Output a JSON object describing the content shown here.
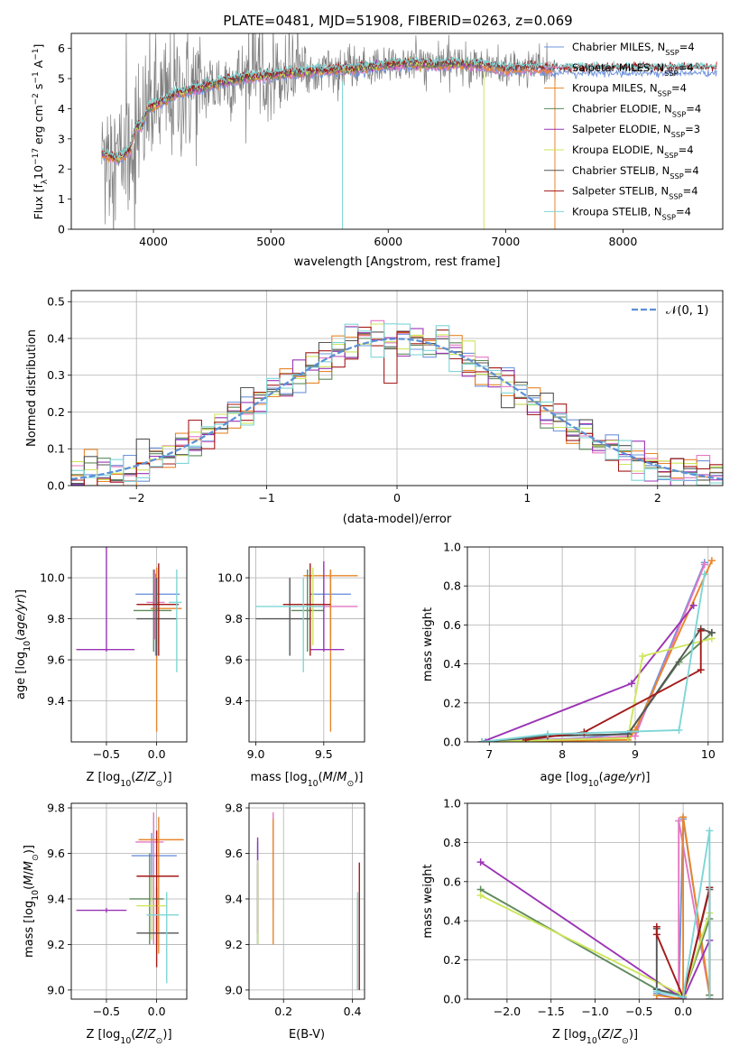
{
  "figure": {
    "title": "PLATE=0481, MJD=51908, FIBERID=0263, z=0.069"
  },
  "colors": {
    "chabrier_miles": "#6f94dc",
    "salpeter_miles": "#e377c2",
    "kroupa_miles": "#e8862a",
    "chabrier_elodie": "#5f8a5c",
    "salpeter_elodie": "#9b34b5",
    "kroupa_elodie": "#cde65a",
    "chabrier_stelib": "#555555",
    "salpeter_stelib": "#a31a1a",
    "kroupa_stelib": "#7fd6d6",
    "observed": "#808080",
    "normal_curve": "#5b8fd6",
    "grid": "#b0b0b0"
  },
  "chart_data": [
    {
      "id": "spectrum",
      "type": "line",
      "title": "PLATE=0481, MJD=51908, FIBERID=0263, z=0.069",
      "xlabel": "wavelength [Angstrom, rest frame]",
      "ylabel": "Flux [f_λ10^-17 erg cm^-2 s^-1 A^-1]",
      "xlim": [
        3300,
        8850
      ],
      "ylim": [
        0,
        6.5
      ],
      "xticks": [
        4000,
        5000,
        6000,
        7000,
        8000
      ],
      "yticks": [
        0,
        1,
        2,
        3,
        4,
        5,
        6
      ],
      "grid": false,
      "legend_position": "top-right",
      "observed_range": [
        3560,
        7430
      ],
      "model_knots": {
        "x": [
          3560,
          3700,
          3800,
          3850,
          3900,
          3950,
          4000,
          4100,
          4200,
          4400,
          4600,
          4800,
          5000,
          5200,
          5400,
          5600,
          5800,
          6000,
          6200,
          6400,
          6600,
          6800,
          7000,
          7200,
          7400
        ],
        "y": [
          2.5,
          2.35,
          2.6,
          3.4,
          3.4,
          4.0,
          4.1,
          4.3,
          4.5,
          4.7,
          4.9,
          5.05,
          5.1,
          5.2,
          5.25,
          5.3,
          5.35,
          5.45,
          5.5,
          5.45,
          5.5,
          5.45,
          5.3,
          5.35,
          5.3
        ]
      },
      "series": [
        {
          "name": "Chabrier MILES, N_SSP=4",
          "color": "#6f94dc",
          "end": 8800
        },
        {
          "name": "Salpeter MILES, N_SSP=4",
          "color": "#e377c2",
          "end": 7400
        },
        {
          "name": "Kroupa MILES, N_SSP=4",
          "color": "#e8862a",
          "end": 7400
        },
        {
          "name": "Chabrier ELODIE, N_SSP=4",
          "color": "#5f8a5c",
          "end": 6800
        },
        {
          "name": "Salpeter ELODIE, N_SSP=3",
          "color": "#9b34b5",
          "end": 6800
        },
        {
          "name": "Kroupa ELODIE, N_SSP=4",
          "color": "#cde65a",
          "end": 6800
        },
        {
          "name": "Chabrier STELIB, N_SSP=4",
          "color": "#555555",
          "end": 8800
        },
        {
          "name": "Salpeter STELIB, N_SSP=4",
          "color": "#a31a1a",
          "end": 8800
        },
        {
          "name": "Kroupa STELIB, N_SSP=4",
          "color": "#7fd6d6",
          "end": 8800
        }
      ]
    },
    {
      "id": "residuals",
      "type": "line",
      "xlabel": "(data-model)/error",
      "ylabel": "Normed distribution",
      "xlim": [
        -2.5,
        2.5
      ],
      "ylim": [
        0,
        0.53
      ],
      "xticks": [
        -2,
        -1,
        0,
        1,
        2
      ],
      "yticks": [
        0.0,
        0.1,
        0.2,
        0.3,
        0.4,
        0.5
      ],
      "grid": true,
      "legend": "𝒩(0, 1)",
      "legend_position": "top-right",
      "histogram": {
        "bin_width": 0.1,
        "range": [
          -2.5,
          2.5
        ],
        "peak_values": [
          0.5,
          0.49,
          0.48,
          0.46,
          0.45,
          0.44,
          0.43,
          0.42,
          0.41
        ]
      }
    },
    {
      "id": "age-vs-Z",
      "type": "scatter",
      "xlabel": "Z [log10(Z/Z☉)]",
      "ylabel": "age  [log10(age/yr)]",
      "xlim": [
        -0.85,
        0.3
      ],
      "ylim": [
        9.2,
        10.15
      ],
      "xticks": [
        -0.5,
        0.0
      ],
      "yticks": [
        9.4,
        9.6,
        9.8,
        10.0
      ],
      "grid": true,
      "points": [
        {
          "x": -0.01,
          "y": 9.92,
          "xerr": [
            0.2,
            0.24
          ],
          "yerr": [
            0.3,
            0.1
          ],
          "color": "#6f94dc"
        },
        {
          "x": -0.02,
          "y": 9.88,
          "xerr": [
            0.08,
            0.1
          ],
          "yerr": [
            0.18,
            0.16
          ],
          "color": "#e377c2"
        },
        {
          "x": 0.0,
          "y": 9.85,
          "xerr": [
            0.06,
            0.25
          ],
          "yerr": [
            0.6,
            0.2
          ],
          "color": "#e8862a"
        },
        {
          "x": -0.03,
          "y": 9.84,
          "xerr": [
            0.2,
            0.18
          ],
          "yerr": [
            0.2,
            0.2
          ],
          "color": "#5f8a5c"
        },
        {
          "x": -0.5,
          "y": 9.65,
          "xerr": [
            0.3,
            0.28
          ],
          "yerr": [
            0.01,
            1.45
          ],
          "color": "#9b34b5"
        },
        {
          "x": 0.02,
          "y": 9.87,
          "xerr": [
            0.2,
            0.05
          ],
          "yerr": [
            0.2,
            0.18
          ],
          "color": "#cde65a"
        },
        {
          "x": 0.0,
          "y": 9.8,
          "xerr": [
            0.2,
            0.2
          ],
          "yerr": [
            0.18,
            0.2
          ],
          "color": "#555555"
        },
        {
          "x": 0.02,
          "y": 9.87,
          "xerr": [
            0.22,
            0.2
          ],
          "yerr": [
            0.25,
            0.2
          ],
          "color": "#a31a1a"
        },
        {
          "x": 0.2,
          "y": 9.88,
          "xerr": [
            0.08,
            0.05
          ],
          "yerr": [
            0.34,
            0.16
          ],
          "color": "#7fd6d6"
        }
      ]
    },
    {
      "id": "age-vs-mass",
      "type": "scatter",
      "xlabel": "mass [log10(M/M☉)]",
      "ylabel": "",
      "xlim": [
        8.95,
        9.8
      ],
      "ylim": [
        9.2,
        10.15
      ],
      "xticks": [
        9.0,
        9.5
      ],
      "yticks": [
        9.4,
        9.6,
        9.8,
        10.0
      ],
      "grid": true,
      "points": [
        {
          "x": 9.55,
          "y": 9.92,
          "xerr": [
            0.15,
            0.15
          ],
          "yerr": [
            0.2,
            0.12
          ],
          "color": "#6f94dc"
        },
        {
          "x": 9.55,
          "y": 9.86,
          "xerr": [
            0.15,
            0.2
          ],
          "yerr": [
            0.2,
            0.16
          ],
          "color": "#e377c2"
        },
        {
          "x": 9.55,
          "y": 10.01,
          "xerr": [
            0.2,
            0.2
          ],
          "yerr": [
            0.76,
            0.03
          ],
          "color": "#e8862a"
        },
        {
          "x": 9.38,
          "y": 9.84,
          "xerr": [
            0.12,
            0.12
          ],
          "yerr": [
            0.2,
            0.2
          ],
          "color": "#5f8a5c"
        },
        {
          "x": 9.5,
          "y": 9.65,
          "xerr": [
            0.1,
            0.15
          ],
          "yerr": [
            0.01,
            0.43
          ],
          "color": "#9b34b5"
        },
        {
          "x": 9.42,
          "y": 9.87,
          "xerr": [
            0.15,
            0.1
          ],
          "yerr": [
            0.2,
            0.18
          ],
          "color": "#cde65a"
        },
        {
          "x": 9.25,
          "y": 9.8,
          "xerr": [
            0.25,
            0.15
          ],
          "yerr": [
            0.18,
            0.2
          ],
          "color": "#555555"
        },
        {
          "x": 9.4,
          "y": 9.87,
          "xerr": [
            0.2,
            0.15
          ],
          "yerr": [
            0.25,
            0.2
          ],
          "color": "#a31a1a"
        },
        {
          "x": 9.35,
          "y": 9.86,
          "xerr": [
            0.35,
            0.15
          ],
          "yerr": [
            0.32,
            0.14
          ],
          "color": "#7fd6d6"
        }
      ]
    },
    {
      "id": "weight-vs-age",
      "type": "line",
      "xlabel": "age  [log10(age/yr)]",
      "ylabel": "mass weight",
      "xlim": [
        6.7,
        10.2
      ],
      "ylim": [
        0,
        1.0
      ],
      "xticks": [
        7,
        8,
        9,
        10
      ],
      "yticks": [
        0.0,
        0.2,
        0.4,
        0.6,
        0.8,
        1.0
      ],
      "grid": true,
      "series": [
        {
          "color": "#6f94dc",
          "x": [
            6.95,
            8.3,
            9.0,
            9.95
          ],
          "y": [
            0.0,
            0.02,
            0.05,
            0.92
          ]
        },
        {
          "color": "#e377c2",
          "x": [
            7.0,
            8.5,
            9.0,
            9.95
          ],
          "y": [
            0.0,
            0.02,
            0.03,
            0.91
          ]
        },
        {
          "color": "#e8862a",
          "x": [
            7.0,
            8.9,
            9.0,
            10.05
          ],
          "y": [
            0.0,
            0.01,
            0.06,
            0.93
          ]
        },
        {
          "color": "#5f8a5c",
          "x": [
            6.9,
            7.8,
            8.9,
            9.6,
            10.05
          ],
          "y": [
            0.0,
            0.03,
            0.04,
            0.41,
            0.56
          ]
        },
        {
          "color": "#9b34b5",
          "x": [
            6.9,
            8.95,
            9.8
          ],
          "y": [
            0.0,
            0.3,
            0.7
          ]
        },
        {
          "color": "#cde65a",
          "x": [
            6.9,
            8.9,
            9.1,
            10.05
          ],
          "y": [
            0.0,
            0.02,
            0.44,
            0.53
          ]
        },
        {
          "color": "#555555",
          "x": [
            6.9,
            7.8,
            8.9,
            9.9,
            10.05
          ],
          "y": [
            0.0,
            0.03,
            0.04,
            0.58,
            0.56
          ]
        },
        {
          "color": "#a31a1a",
          "x": [
            7.5,
            8.3,
            9.9,
            9.9
          ],
          "y": [
            0.01,
            0.05,
            0.37,
            0.57
          ]
        },
        {
          "color": "#7fd6d6",
          "x": [
            6.9,
            7.8,
            9.6,
            9.95
          ],
          "y": [
            0.0,
            0.04,
            0.06,
            0.86
          ]
        }
      ]
    },
    {
      "id": "mass-vs-Z",
      "type": "scatter",
      "xlabel": "Z [log10(Z/Z☉)]",
      "ylabel": "mass [log10(M/M☉)]",
      "xlim": [
        -0.85,
        0.3
      ],
      "ylim": [
        8.96,
        9.82
      ],
      "xticks": [
        -0.5,
        0.0
      ],
      "yticks": [
        9.0,
        9.2,
        9.4,
        9.6,
        9.8
      ],
      "grid": true,
      "points": [
        {
          "x": -0.05,
          "y": 9.59,
          "xerr": [
            0.2,
            0.25
          ],
          "yerr": [
            0.2,
            0.1
          ],
          "color": "#6f94dc"
        },
        {
          "x": -0.03,
          "y": 9.65,
          "xerr": [
            0.18,
            0.1
          ],
          "yerr": [
            0.45,
            0.13
          ],
          "color": "#e377c2"
        },
        {
          "x": 0.02,
          "y": 9.66,
          "xerr": [
            0.2,
            0.25
          ],
          "yerr": [
            0.5,
            0.1
          ],
          "color": "#e8862a"
        },
        {
          "x": -0.07,
          "y": 9.4,
          "xerr": [
            0.2,
            0.14
          ],
          "yerr": [
            0.2,
            0.2
          ],
          "color": "#5f8a5c"
        },
        {
          "x": -0.5,
          "y": 9.35,
          "xerr": [
            0.3,
            0.2
          ],
          "yerr": [
            0.01,
            0.01
          ],
          "color": "#9b34b5"
        },
        {
          "x": -0.05,
          "y": 9.37,
          "xerr": [
            0.15,
            0.15
          ],
          "yerr": [
            0.15,
            0.13
          ],
          "color": "#cde65a"
        },
        {
          "x": 0.0,
          "y": 9.25,
          "xerr": [
            0.2,
            0.22
          ],
          "yerr": [
            0.05,
            0.2
          ],
          "color": "#555555"
        },
        {
          "x": 0.0,
          "y": 9.5,
          "xerr": [
            0.2,
            0.22
          ],
          "yerr": [
            0.4,
            0.2
          ],
          "color": "#a31a1a"
        },
        {
          "x": 0.1,
          "y": 9.33,
          "xerr": [
            0.2,
            0.12
          ],
          "yerr": [
            0.3,
            0.1
          ],
          "color": "#7fd6d6"
        }
      ]
    },
    {
      "id": "mass-vs-ebv",
      "type": "scatter",
      "xlabel": "E(B-V)",
      "ylabel": "",
      "xlim": [
        0.1,
        0.435
      ],
      "ylim": [
        8.96,
        9.82
      ],
      "xticks": [
        0.2,
        0.4
      ],
      "yticks": [
        9.0,
        9.2,
        9.4,
        9.6,
        9.8
      ],
      "grid": true,
      "points": [
        {
          "x": 0.125,
          "y": 9.5,
          "yerr": [
            0.3,
            0.15
          ],
          "color": "#6f94dc"
        },
        {
          "x": 0.17,
          "y": 9.55,
          "yerr": [
            0.2,
            0.23
          ],
          "color": "#e377c2"
        },
        {
          "x": 0.17,
          "y": 9.5,
          "yerr": [
            0.3,
            0.25
          ],
          "color": "#e8862a"
        },
        {
          "x": 0.125,
          "y": 9.35,
          "yerr": [
            0.15,
            0.2
          ],
          "color": "#5f8a5c"
        },
        {
          "x": 0.125,
          "y": 9.4,
          "yerr": [
            0.15,
            0.27
          ],
          "color": "#9b34b5"
        },
        {
          "x": 0.125,
          "y": 9.4,
          "yerr": [
            0.2,
            0.17
          ],
          "color": "#cde65a"
        },
        {
          "x": 0.415,
          "y": 9.2,
          "yerr": [
            0.2,
            0.2
          ],
          "color": "#555555"
        },
        {
          "x": 0.42,
          "y": 9.3,
          "yerr": [
            0.3,
            0.26
          ],
          "color": "#a31a1a"
        },
        {
          "x": 0.415,
          "y": 9.2,
          "yerr": [
            0.2,
            0.23
          ],
          "color": "#7fd6d6"
        }
      ]
    },
    {
      "id": "weight-vs-Z",
      "type": "line",
      "xlabel": "Z [log10(Z/Z☉)]",
      "ylabel": "mass weight",
      "xlim": [
        -2.45,
        0.45
      ],
      "ylim": [
        0,
        1.0
      ],
      "xticks": [
        -2.0,
        -1.5,
        -1.0,
        -0.5,
        0.0
      ],
      "yticks": [
        0.0,
        0.2,
        0.4,
        0.6,
        0.8,
        1.0
      ],
      "grid": true,
      "series": [
        {
          "color": "#6f94dc",
          "x": [
            -0.3,
            -0.05,
            0.0,
            0.3
          ],
          "y": [
            0.03,
            0.0,
            0.92,
            0.02
          ]
        },
        {
          "color": "#e377c2",
          "x": [
            -0.3,
            -0.05,
            -0.05,
            0.3
          ],
          "y": [
            0.0,
            0.0,
            0.91,
            0.02
          ]
        },
        {
          "color": "#e8862a",
          "x": [
            -0.3,
            0.0,
            0.0,
            0.3
          ],
          "y": [
            0.02,
            0.0,
            0.93,
            0.02
          ]
        },
        {
          "color": "#5f8a5c",
          "x": [
            -2.3,
            -0.3,
            0.0,
            0.3,
            0.3
          ],
          "y": [
            0.56,
            0.05,
            0.02,
            0.41,
            0.02
          ]
        },
        {
          "color": "#9b34b5",
          "x": [
            -2.3,
            0.0,
            0.3
          ],
          "y": [
            0.7,
            0.0,
            0.3
          ]
        },
        {
          "color": "#cde65a",
          "x": [
            -2.3,
            0.0,
            0.3,
            0.3
          ],
          "y": [
            0.53,
            0.02,
            0.44,
            0.0
          ]
        },
        {
          "color": "#555555",
          "x": [
            -0.3,
            -0.3,
            0.0,
            0.3,
            0.3
          ],
          "y": [
            0.36,
            0.05,
            0.01,
            0.56,
            0.0
          ]
        },
        {
          "color": "#a31a1a",
          "x": [
            -0.3,
            -0.3,
            0.0,
            0.3,
            0.3
          ],
          "y": [
            0.37,
            0.33,
            0.01,
            0.57,
            0.0
          ]
        },
        {
          "color": "#7fd6d6",
          "x": [
            -0.3,
            0.0,
            0.3,
            0.3
          ],
          "y": [
            0.04,
            0.01,
            0.86,
            0.0
          ]
        }
      ]
    }
  ]
}
